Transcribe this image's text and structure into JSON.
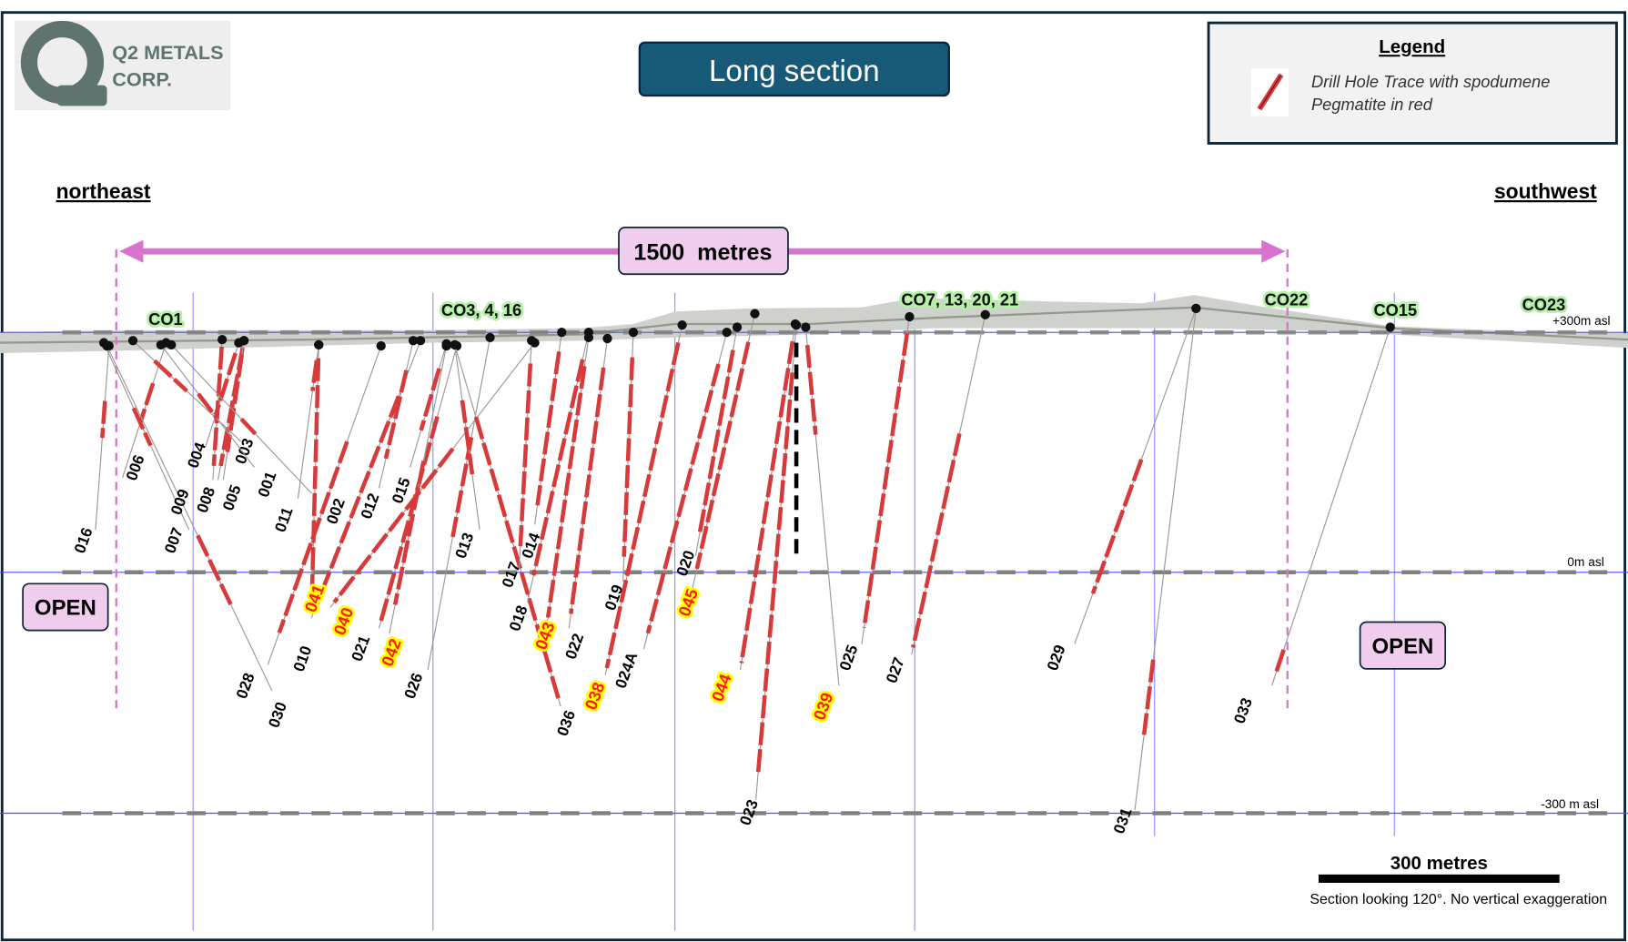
{
  "logo": {
    "line1": "Q2 METALS",
    "line2": "CORP."
  },
  "title": "Long section",
  "legend": {
    "heading": "Legend",
    "line1": "Drill Hole Trace with spodumene",
    "line2": "Pegmatite in red",
    "icon": "red-drill-trace-icon"
  },
  "directions": {
    "left": "northeast",
    "right": "southwest"
  },
  "span_label": "1500  metres",
  "elevations": {
    "top": "+300m asl",
    "middle": "0m asl",
    "bottom": "-300 m asl"
  },
  "open_left": "OPEN",
  "open_right": "OPEN",
  "collar_groups": [
    "CO1",
    "CO3, 4, 16",
    "CO7, 13, 20, 21",
    "CO22",
    "CO15",
    "CO23"
  ],
  "holes": [
    {
      "id": "016",
      "highlight": false
    },
    {
      "id": "006",
      "highlight": false
    },
    {
      "id": "007",
      "highlight": false
    },
    {
      "id": "030",
      "highlight": false
    },
    {
      "id": "009",
      "highlight": false
    },
    {
      "id": "008",
      "highlight": false
    },
    {
      "id": "005",
      "highlight": false
    },
    {
      "id": "004",
      "highlight": false
    },
    {
      "id": "003",
      "highlight": false
    },
    {
      "id": "001",
      "highlight": false
    },
    {
      "id": "002",
      "highlight": false
    },
    {
      "id": "011",
      "highlight": false
    },
    {
      "id": "010",
      "highlight": false
    },
    {
      "id": "028",
      "highlight": false
    },
    {
      "id": "041",
      "highlight": true
    },
    {
      "id": "012",
      "highlight": false
    },
    {
      "id": "015",
      "highlight": false
    },
    {
      "id": "040",
      "highlight": true
    },
    {
      "id": "021",
      "highlight": false
    },
    {
      "id": "042",
      "highlight": true
    },
    {
      "id": "026",
      "highlight": false
    },
    {
      "id": "013",
      "highlight": false
    },
    {
      "id": "036",
      "highlight": false
    },
    {
      "id": "017",
      "highlight": false
    },
    {
      "id": "014",
      "highlight": false
    },
    {
      "id": "018",
      "highlight": false
    },
    {
      "id": "043",
      "highlight": true
    },
    {
      "id": "022",
      "highlight": false
    },
    {
      "id": "019",
      "highlight": false
    },
    {
      "id": "038",
      "highlight": true
    },
    {
      "id": "024A",
      "highlight": false
    },
    {
      "id": "020",
      "highlight": false
    },
    {
      "id": "045",
      "highlight": true
    },
    {
      "id": "044",
      "highlight": true
    },
    {
      "id": "023",
      "highlight": false
    },
    {
      "id": "039",
      "highlight": true
    },
    {
      "id": "025",
      "highlight": false
    },
    {
      "id": "027",
      "highlight": false
    },
    {
      "id": "029",
      "highlight": false
    },
    {
      "id": "031",
      "highlight": false
    },
    {
      "id": "033",
      "highlight": false
    }
  ],
  "scale": {
    "label": "300 metres"
  },
  "caption": "Section looking 120°.  No vertical exaggeration",
  "colors": {
    "frame": "#0d2436",
    "title_bg": "#165a78",
    "span_arrow": "#d874cf",
    "open_bg": "#f0cdee",
    "pegmatite": "#d63a3a",
    "grid": "#6b6bff"
  }
}
